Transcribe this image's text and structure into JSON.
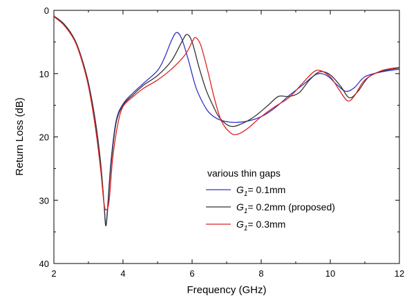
{
  "chart_data": {
    "type": "line",
    "title": "",
    "xlabel": "Frequency (GHz)",
    "ylabel": "Return Loss (dB)",
    "xlim": [
      2,
      12
    ],
    "ylim": [
      0,
      40
    ],
    "y_inverted": true,
    "x_ticks": [
      2,
      4,
      6,
      8,
      10,
      12
    ],
    "y_ticks": [
      0,
      10,
      20,
      30,
      40
    ],
    "x_tick_labels": [
      "2",
      "4",
      "6",
      "8",
      "10",
      "12"
    ],
    "y_tick_labels": [
      "0",
      "10",
      "20",
      "30",
      "40"
    ],
    "grid": false,
    "legend": {
      "position": "bottom-right",
      "title": "various thin gaps"
    },
    "series": [
      {
        "name": "G1= 0.1mm",
        "label_var": "G",
        "label_sub": "1",
        "label_rest": "= 0.1mm",
        "color": "#3333cc",
        "points": [
          [
            2.0,
            0.9
          ],
          [
            2.3,
            2.2
          ],
          [
            2.6,
            4.6
          ],
          [
            2.8,
            7.5
          ],
          [
            3.0,
            11.5
          ],
          [
            3.2,
            17.5
          ],
          [
            3.35,
            24.0
          ],
          [
            3.45,
            30.5
          ],
          [
            3.5,
            34.0
          ],
          [
            3.55,
            31.5
          ],
          [
            3.65,
            24.0
          ],
          [
            3.8,
            17.5
          ],
          [
            4.0,
            14.8
          ],
          [
            4.3,
            13.0
          ],
          [
            4.6,
            11.5
          ],
          [
            5.0,
            9.5
          ],
          [
            5.2,
            7.5
          ],
          [
            5.4,
            4.8
          ],
          [
            5.55,
            3.5
          ],
          [
            5.7,
            4.5
          ],
          [
            5.9,
            8.0
          ],
          [
            6.1,
            12.0
          ],
          [
            6.3,
            14.5
          ],
          [
            6.5,
            16.2
          ],
          [
            6.8,
            17.3
          ],
          [
            7.2,
            17.7
          ],
          [
            7.6,
            17.5
          ],
          [
            8.0,
            16.8
          ],
          [
            8.4,
            15.4
          ],
          [
            8.8,
            13.5
          ],
          [
            9.2,
            11.8
          ],
          [
            9.6,
            10.1
          ],
          [
            9.9,
            10.3
          ],
          [
            10.2,
            11.8
          ],
          [
            10.45,
            12.8
          ],
          [
            10.7,
            12.2
          ],
          [
            11.0,
            10.5
          ],
          [
            11.5,
            9.7
          ],
          [
            12.0,
            9.3
          ]
        ]
      },
      {
        "name": "G1= 0.2mm (proposed)",
        "label_var": "G",
        "label_sub": "1",
        "label_rest": "= 0.2mm (proposed)",
        "color": "#333333",
        "points": [
          [
            2.0,
            0.9
          ],
          [
            2.3,
            2.2
          ],
          [
            2.6,
            4.6
          ],
          [
            2.8,
            7.5
          ],
          [
            3.0,
            11.5
          ],
          [
            3.2,
            17.5
          ],
          [
            3.35,
            24.0
          ],
          [
            3.45,
            30.5
          ],
          [
            3.5,
            34.0
          ],
          [
            3.55,
            31.8
          ],
          [
            3.65,
            24.5
          ],
          [
            3.8,
            17.8
          ],
          [
            4.0,
            15.0
          ],
          [
            4.3,
            13.3
          ],
          [
            4.6,
            11.8
          ],
          [
            5.0,
            10.3
          ],
          [
            5.4,
            8.0
          ],
          [
            5.7,
            5.0
          ],
          [
            5.85,
            3.8
          ],
          [
            6.0,
            5.0
          ],
          [
            6.2,
            9.0
          ],
          [
            6.4,
            12.5
          ],
          [
            6.6,
            15.0
          ],
          [
            6.8,
            17.0
          ],
          [
            7.1,
            18.3
          ],
          [
            7.4,
            18.0
          ],
          [
            7.8,
            16.8
          ],
          [
            8.2,
            15.0
          ],
          [
            8.5,
            13.6
          ],
          [
            8.8,
            13.6
          ],
          [
            9.1,
            13.0
          ],
          [
            9.4,
            11.0
          ],
          [
            9.7,
            9.7
          ],
          [
            10.0,
            10.2
          ],
          [
            10.3,
            12.0
          ],
          [
            10.55,
            13.8
          ],
          [
            10.8,
            12.8
          ],
          [
            11.1,
            10.6
          ],
          [
            11.5,
            9.6
          ],
          [
            12.0,
            9.1
          ]
        ]
      },
      {
        "name": "G1= 0.3mm",
        "label_var": "G",
        "label_sub": "1",
        "label_rest": "= 0.3mm",
        "color": "#dd2222",
        "points": [
          [
            2.0,
            1.0
          ],
          [
            2.3,
            2.4
          ],
          [
            2.6,
            4.8
          ],
          [
            2.8,
            7.8
          ],
          [
            3.0,
            12.0
          ],
          [
            3.2,
            18.5
          ],
          [
            3.35,
            25.0
          ],
          [
            3.45,
            30.5
          ],
          [
            3.52,
            31.5
          ],
          [
            3.6,
            30.0
          ],
          [
            3.7,
            23.5
          ],
          [
            3.85,
            18.0
          ],
          [
            4.0,
            15.2
          ],
          [
            4.3,
            13.6
          ],
          [
            4.6,
            12.3
          ],
          [
            5.0,
            11.0
          ],
          [
            5.4,
            9.3
          ],
          [
            5.8,
            7.0
          ],
          [
            6.0,
            5.0
          ],
          [
            6.1,
            4.3
          ],
          [
            6.25,
            5.5
          ],
          [
            6.45,
            9.5
          ],
          [
            6.65,
            14.0
          ],
          [
            6.85,
            17.5
          ],
          [
            7.1,
            19.3
          ],
          [
            7.3,
            19.6
          ],
          [
            7.6,
            18.7
          ],
          [
            8.0,
            16.8
          ],
          [
            8.4,
            15.2
          ],
          [
            8.8,
            13.8
          ],
          [
            9.2,
            11.5
          ],
          [
            9.5,
            9.8
          ],
          [
            9.7,
            9.5
          ],
          [
            10.0,
            10.5
          ],
          [
            10.25,
            12.5
          ],
          [
            10.5,
            14.3
          ],
          [
            10.7,
            13.5
          ],
          [
            11.0,
            11.0
          ],
          [
            11.5,
            9.5
          ],
          [
            12.0,
            9.0
          ]
        ]
      }
    ]
  }
}
